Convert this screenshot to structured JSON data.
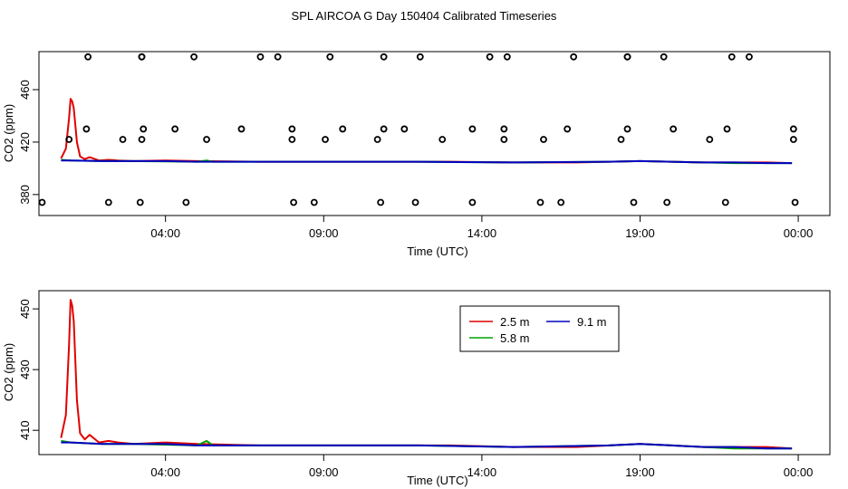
{
  "title": "SPL AIRCOA G  Day 150404  Calibrated Timeseries",
  "chart_data": [
    {
      "type": "line",
      "xlabel": "Time (UTC)",
      "ylabel": "CO2 (ppm)",
      "x_ticks": [
        {
          "x": 4,
          "label": "04:00"
        },
        {
          "x": 9,
          "label": "09:00"
        },
        {
          "x": 14,
          "label": "14:00"
        },
        {
          "x": 19,
          "label": "19:00"
        },
        {
          "x": 24,
          "label": "00:00"
        }
      ],
      "y_ticks": [
        {
          "y": 380,
          "label": "380"
        },
        {
          "y": 420,
          "label": "420"
        },
        {
          "y": 460,
          "label": "460"
        }
      ],
      "xlim": [
        0.0,
        25.0
      ],
      "ylim": [
        364,
        489
      ],
      "series": [
        {
          "name": "2.5 m",
          "color": "#e00000",
          "x": [
            0.7,
            0.85,
            0.95,
            1.0,
            1.05,
            1.1,
            1.2,
            1.3,
            1.45,
            1.6,
            1.9,
            2.2,
            2.5,
            3.0,
            4.0,
            5.0,
            7.0,
            9.0,
            11.0,
            13.0,
            15.0,
            17.0,
            19.0,
            20.0,
            21.0,
            23.0,
            23.8
          ],
          "y": [
            407.5,
            415,
            438,
            453,
            451,
            446,
            420,
            409,
            407,
            408.5,
            406,
            406.5,
            406,
            405.5,
            406,
            405.5,
            405,
            405,
            405,
            405,
            404.5,
            404.5,
            405.5,
            405,
            404.5,
            404.5,
            404
          ]
        },
        {
          "name": "5.8 m",
          "color": "#00a000",
          "x": [
            0.7,
            1.0,
            2.0,
            3.0,
            5.0,
            5.3,
            5.5,
            7.0,
            9.0,
            12.0,
            15.0,
            18.0,
            19.0,
            20.0,
            21.0,
            22.0,
            23.0,
            23.8
          ],
          "y": [
            406.5,
            406,
            405.5,
            405.5,
            405,
            406,
            405,
            405,
            405,
            405,
            404.5,
            405,
            405.5,
            405,
            404.5,
            404,
            404,
            404
          ]
        },
        {
          "name": "9.1 m",
          "color": "#0000c0",
          "x": [
            0.7,
            1.0,
            2.0,
            3.0,
            4.0,
            5.0,
            7.0,
            9.0,
            12.0,
            15.0,
            18.0,
            19.0,
            20.0,
            21.0,
            22.0,
            23.0,
            23.8
          ],
          "y": [
            406,
            406,
            405.5,
            405.5,
            405.5,
            405,
            405,
            405,
            405,
            404.5,
            405,
            405.5,
            405,
            404.5,
            404.5,
            404,
            404
          ]
        }
      ],
      "scatter": {
        "color": "#000000",
        "points": [
          {
            "x": 1.55,
            "y": 485
          },
          {
            "x": 3.25,
            "y": 485
          },
          {
            "x": 4.9,
            "y": 485
          },
          {
            "x": 7.0,
            "y": 485
          },
          {
            "x": 7.55,
            "y": 485
          },
          {
            "x": 9.2,
            "y": 485
          },
          {
            "x": 10.9,
            "y": 485
          },
          {
            "x": 12.05,
            "y": 485
          },
          {
            "x": 14.25,
            "y": 485
          },
          {
            "x": 14.8,
            "y": 485
          },
          {
            "x": 16.9,
            "y": 485
          },
          {
            "x": 18.6,
            "y": 485
          },
          {
            "x": 19.75,
            "y": 485
          },
          {
            "x": 21.9,
            "y": 485
          },
          {
            "x": 22.45,
            "y": 485
          },
          {
            "x": 3.25,
            "y": 485
          },
          {
            "x": 18.6,
            "y": 485
          },
          {
            "x": 1.5,
            "y": 430
          },
          {
            "x": 3.3,
            "y": 430
          },
          {
            "x": 4.3,
            "y": 430
          },
          {
            "x": 6.4,
            "y": 430
          },
          {
            "x": 8.0,
            "y": 430
          },
          {
            "x": 9.6,
            "y": 430
          },
          {
            "x": 10.9,
            "y": 430
          },
          {
            "x": 11.55,
            "y": 430
          },
          {
            "x": 13.7,
            "y": 430
          },
          {
            "x": 14.7,
            "y": 430
          },
          {
            "x": 16.7,
            "y": 430
          },
          {
            "x": 18.6,
            "y": 430
          },
          {
            "x": 20.05,
            "y": 430
          },
          {
            "x": 21.75,
            "y": 430
          },
          {
            "x": 23.85,
            "y": 430
          },
          {
            "x": 0.95,
            "y": 422
          },
          {
            "x": 2.65,
            "y": 422
          },
          {
            "x": 3.25,
            "y": 422
          },
          {
            "x": 5.3,
            "y": 422
          },
          {
            "x": 8.0,
            "y": 422
          },
          {
            "x": 9.05,
            "y": 422
          },
          {
            "x": 10.7,
            "y": 422
          },
          {
            "x": 12.75,
            "y": 422
          },
          {
            "x": 14.7,
            "y": 422
          },
          {
            "x": 15.95,
            "y": 422
          },
          {
            "x": 18.4,
            "y": 422
          },
          {
            "x": 21.2,
            "y": 422
          },
          {
            "x": 23.85,
            "y": 422
          },
          {
            "x": 0.1,
            "y": 374
          },
          {
            "x": 2.2,
            "y": 374
          },
          {
            "x": 3.2,
            "y": 374
          },
          {
            "x": 4.65,
            "y": 374
          },
          {
            "x": 8.05,
            "y": 374
          },
          {
            "x": 8.7,
            "y": 374
          },
          {
            "x": 10.8,
            "y": 374
          },
          {
            "x": 11.9,
            "y": 374
          },
          {
            "x": 13.7,
            "y": 374
          },
          {
            "x": 15.85,
            "y": 374
          },
          {
            "x": 16.5,
            "y": 374
          },
          {
            "x": 18.8,
            "y": 374
          },
          {
            "x": 19.85,
            "y": 374
          },
          {
            "x": 21.7,
            "y": 374
          },
          {
            "x": 23.9,
            "y": 374
          }
        ]
      }
    },
    {
      "type": "line",
      "xlabel": "Time (UTC)",
      "ylabel": "CO2 (ppm)",
      "x_ticks": [
        {
          "x": 4,
          "label": "04:00"
        },
        {
          "x": 9,
          "label": "09:00"
        },
        {
          "x": 14,
          "label": "14:00"
        },
        {
          "x": 19,
          "label": "19:00"
        },
        {
          "x": 24,
          "label": "00:00"
        }
      ],
      "y_ticks": [
        {
          "y": 410,
          "label": "410"
        },
        {
          "y": 430,
          "label": "430"
        },
        {
          "y": 450,
          "label": "450"
        }
      ],
      "xlim": [
        0.0,
        25.0
      ],
      "ylim": [
        402,
        456
      ],
      "legend": {
        "position": "top-right",
        "entries": [
          {
            "label": "2.5 m",
            "color": "#e00000"
          },
          {
            "label": "9.1 m",
            "color": "#0000c0"
          },
          {
            "label": "5.8 m",
            "color": "#00a000"
          }
        ]
      },
      "series": [
        {
          "name": "2.5 m",
          "color": "#e00000",
          "x": [
            0.7,
            0.85,
            0.95,
            1.0,
            1.05,
            1.1,
            1.2,
            1.3,
            1.45,
            1.6,
            1.9,
            2.2,
            2.5,
            3.0,
            4.0,
            5.0,
            7.0,
            9.0,
            11.0,
            13.0,
            15.0,
            17.0,
            19.0,
            20.0,
            21.0,
            23.0,
            23.8
          ],
          "y": [
            407.5,
            415,
            438,
            453,
            451,
            446,
            420,
            409,
            407,
            408.5,
            406,
            406.5,
            406,
            405.5,
            406,
            405.5,
            405,
            405,
            405,
            405,
            404.5,
            404.5,
            405.5,
            405,
            404.5,
            404.5,
            404
          ]
        },
        {
          "name": "5.8 m",
          "color": "#00a000",
          "x": [
            0.7,
            1.0,
            2.0,
            3.0,
            5.0,
            5.3,
            5.5,
            7.0,
            9.0,
            12.0,
            15.0,
            18.0,
            19.0,
            20.0,
            21.0,
            22.0,
            23.0,
            23.8
          ],
          "y": [
            406.5,
            406,
            405.5,
            405.5,
            405,
            406.5,
            405,
            405,
            405,
            405,
            404.5,
            405,
            405.5,
            405,
            404.5,
            404,
            404,
            404
          ]
        },
        {
          "name": "9.1 m",
          "color": "#0000c0",
          "x": [
            0.7,
            1.0,
            2.0,
            3.0,
            4.0,
            5.0,
            7.0,
            9.0,
            12.0,
            15.0,
            18.0,
            19.0,
            20.0,
            21.0,
            22.0,
            23.0,
            23.8
          ],
          "y": [
            406,
            406,
            405.5,
            405.5,
            405.5,
            405,
            405,
            405,
            405,
            404.5,
            405,
            405.5,
            405,
            404.5,
            404.5,
            404,
            404
          ]
        }
      ]
    }
  ]
}
